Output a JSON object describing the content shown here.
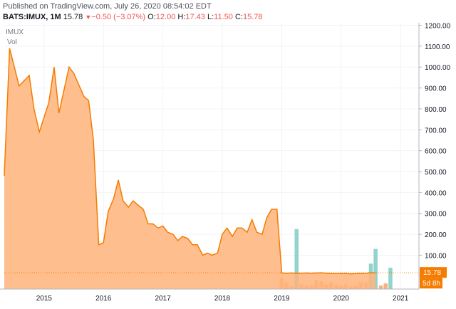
{
  "header": {
    "published": "Published on TradingView.com, July 26, 2020 08:54:02 EDT",
    "symbol": "BATS:IMUX, 1M",
    "last": "15.78",
    "change": "−0.50 (−3.07%)",
    "o_label": "O:",
    "o_value": "12.00",
    "h_label": "H:",
    "h_value": "17.43",
    "l_label": "L:",
    "l_value": "11.50",
    "c_label": "C:",
    "c_value": "15.78"
  },
  "colors": {
    "area_line": "#f57c00",
    "area_fill": "#ffb37a",
    "volume_up": "#80cbc4",
    "volume_down": "#f5a565",
    "price_tag": "#f57c00"
  },
  "chart_data": {
    "type": "area",
    "legend_symbol": "IMUX",
    "legend_volume": "Vol",
    "x_ticks": [
      "2015",
      "2016",
      "2017",
      "2018",
      "2019",
      "2020",
      "2021"
    ],
    "y_ticks": [
      "1200.00",
      "1100.00",
      "1000.00",
      "900.00",
      "800.00",
      "700.00",
      "600.00",
      "500.00",
      "400.00",
      "300.00",
      "200.00",
      "100.00"
    ],
    "ylim": [
      -62,
      1212
    ],
    "last_price_label": "15.78",
    "countdown_label": "5d 8h",
    "series": [
      {
        "values": [
          [
            2014.33,
            480
          ],
          [
            2014.42,
            1090
          ],
          [
            2014.58,
            910
          ],
          [
            2014.75,
            960
          ],
          [
            2014.83,
            800
          ],
          [
            2014.92,
            690
          ],
          [
            2015.08,
            830
          ],
          [
            2015.17,
            1000
          ],
          [
            2015.25,
            780
          ],
          [
            2015.42,
            1000
          ],
          [
            2015.5,
            970
          ],
          [
            2015.67,
            860
          ],
          [
            2015.75,
            840
          ],
          [
            2015.83,
            650
          ],
          [
            2015.92,
            150
          ],
          [
            2016.0,
            160
          ],
          [
            2016.08,
            310
          ],
          [
            2016.17,
            370
          ],
          [
            2016.25,
            460
          ],
          [
            2016.33,
            360
          ],
          [
            2016.42,
            330
          ],
          [
            2016.5,
            360
          ],
          [
            2016.58,
            340
          ],
          [
            2016.67,
            320
          ],
          [
            2016.75,
            250
          ],
          [
            2016.83,
            250
          ],
          [
            2016.92,
            230
          ],
          [
            2017.0,
            240
          ],
          [
            2017.08,
            210
          ],
          [
            2017.17,
            200
          ],
          [
            2017.25,
            170
          ],
          [
            2017.33,
            190
          ],
          [
            2017.42,
            180
          ],
          [
            2017.5,
            150
          ],
          [
            2017.58,
            150
          ],
          [
            2017.67,
            100
          ],
          [
            2017.75,
            110
          ],
          [
            2017.83,
            100
          ],
          [
            2017.92,
            110
          ],
          [
            2018.0,
            200
          ],
          [
            2018.08,
            230
          ],
          [
            2018.17,
            190
          ],
          [
            2018.25,
            230
          ],
          [
            2018.33,
            230
          ],
          [
            2018.42,
            210
          ],
          [
            2018.5,
            270
          ],
          [
            2018.58,
            210
          ],
          [
            2018.67,
            200
          ],
          [
            2018.75,
            280
          ],
          [
            2018.83,
            320
          ],
          [
            2018.92,
            320
          ],
          [
            2019.0,
            15
          ],
          [
            2019.08,
            14
          ],
          [
            2019.17,
            15
          ],
          [
            2019.25,
            13
          ],
          [
            2019.33,
            14
          ],
          [
            2019.42,
            15
          ],
          [
            2019.5,
            14
          ],
          [
            2019.58,
            15
          ],
          [
            2019.67,
            16
          ],
          [
            2019.75,
            14
          ],
          [
            2019.83,
            13
          ],
          [
            2019.92,
            12
          ],
          [
            2020.0,
            13
          ],
          [
            2020.08,
            12
          ],
          [
            2020.17,
            11
          ],
          [
            2020.25,
            12
          ],
          [
            2020.33,
            13
          ],
          [
            2020.42,
            14
          ],
          [
            2020.5,
            16
          ],
          [
            2020.58,
            15.78
          ]
        ]
      }
    ],
    "volume": [
      [
        2019.0,
        -10,
        "down"
      ],
      [
        2019.08,
        -30,
        "down"
      ],
      [
        2019.17,
        -50,
        "down"
      ],
      [
        2019.25,
        225,
        "up"
      ],
      [
        2019.33,
        -40,
        "down"
      ],
      [
        2019.42,
        -45,
        "down"
      ],
      [
        2019.5,
        -45,
        "down"
      ],
      [
        2019.58,
        -20,
        "down"
      ],
      [
        2019.67,
        -25,
        "down"
      ],
      [
        2019.75,
        -40,
        "down"
      ],
      [
        2019.83,
        -30,
        "down"
      ],
      [
        2019.92,
        -40,
        "down"
      ],
      [
        2020.0,
        -45,
        "down"
      ],
      [
        2020.08,
        -40,
        "down"
      ],
      [
        2020.17,
        -50,
        "down"
      ],
      [
        2020.25,
        -45,
        "down"
      ],
      [
        2020.33,
        -30,
        "down"
      ],
      [
        2020.42,
        -30,
        "down"
      ],
      [
        2020.5,
        60,
        "up"
      ],
      [
        2020.58,
        130,
        "up"
      ],
      [
        2020.67,
        -45,
        "down"
      ],
      [
        2020.75,
        -35,
        "down"
      ],
      [
        2020.83,
        40,
        "up"
      ]
    ]
  }
}
